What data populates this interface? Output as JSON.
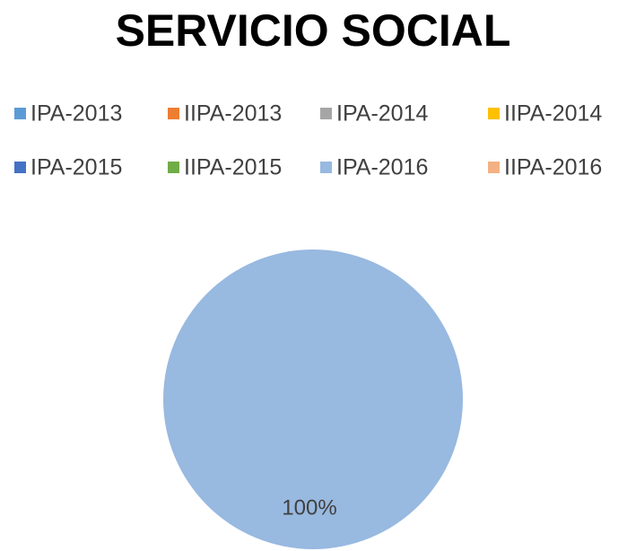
{
  "chart_data": {
    "type": "pie",
    "title": "SERVICIO SOCIAL",
    "categories": [
      "IPA-2013",
      "IIPA-2013",
      "IPA-2014",
      "IIPA-2014",
      "IPA-2015",
      "IIPA-2015",
      "IPA-2016",
      "IIPA-2016"
    ],
    "values": [
      0,
      0,
      0,
      0,
      0,
      0,
      100,
      0
    ],
    "value_labels": [
      null,
      null,
      null,
      null,
      null,
      null,
      "100%",
      null
    ],
    "colors": [
      "#5B9BD5",
      "#ED7D31",
      "#A5A5A5",
      "#FFC000",
      "#4472C4",
      "#70AD47",
      "#98B9E0",
      "#F4B183"
    ],
    "legend": "top"
  }
}
